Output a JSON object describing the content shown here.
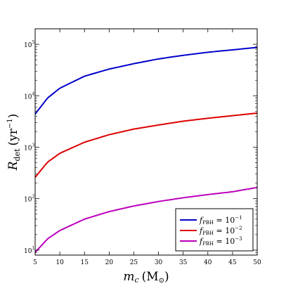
{
  "chart_data": {
    "type": "line",
    "title": "",
    "xlabel": {
      "base": "m",
      "sub": "c",
      "unit_prefix": "(M",
      "unit_sub": "⊙",
      "unit_suffix": ")"
    },
    "ylabel": {
      "base": "R",
      "sub": "det",
      "unit_prefix": "(yr",
      "unit_sup": "−1",
      "unit_suffix": ")"
    },
    "xlim": [
      5,
      50
    ],
    "ylim": [
      8,
      200000
    ],
    "yscale": "log",
    "grid": false,
    "legend_position": "bottom-right",
    "x_ticks": [
      5,
      10,
      15,
      20,
      25,
      30,
      35,
      40,
      45,
      50
    ],
    "y_ticks": [
      {
        "value": 10,
        "base": "10",
        "exp": "1"
      },
      {
        "value": 100,
        "base": "10",
        "exp": "2"
      },
      {
        "value": 1000,
        "base": "10",
        "exp": "3"
      },
      {
        "value": 10000,
        "base": "10",
        "exp": "4"
      },
      {
        "value": 100000,
        "base": "10",
        "exp": "5"
      }
    ],
    "series": [
      {
        "name": {
          "f": "f",
          "sub": "PBH",
          "eq": " = 10",
          "sup": "−1"
        },
        "color": "#0000cc",
        "x": [
          5,
          7.5,
          10,
          15,
          20,
          25,
          30,
          35,
          40,
          45,
          50
        ],
        "y": [
          4400,
          9000,
          14000,
          24000,
          33000,
          42000,
          52000,
          61000,
          70000,
          78000,
          87000
        ]
      },
      {
        "name": {
          "f": "f",
          "sub": "PBH",
          "eq": " = 10",
          "sup": "−2"
        },
        "color": "#dd0000",
        "x": [
          5,
          7.5,
          10,
          15,
          20,
          25,
          30,
          35,
          40,
          45,
          50
        ],
        "y": [
          260,
          510,
          760,
          1250,
          1750,
          2250,
          2700,
          3200,
          3650,
          4100,
          4600
        ]
      },
      {
        "name": {
          "f": "f",
          "sub": "PBH",
          "eq": " = 10",
          "sup": "−3"
        },
        "color": "#bb00bb",
        "x": [
          5,
          7.5,
          10,
          15,
          20,
          25,
          30,
          35,
          40,
          45,
          50
        ],
        "y": [
          9,
          16.5,
          24,
          40,
          56,
          72,
          88,
          104,
          120,
          136,
          165
        ]
      }
    ]
  }
}
